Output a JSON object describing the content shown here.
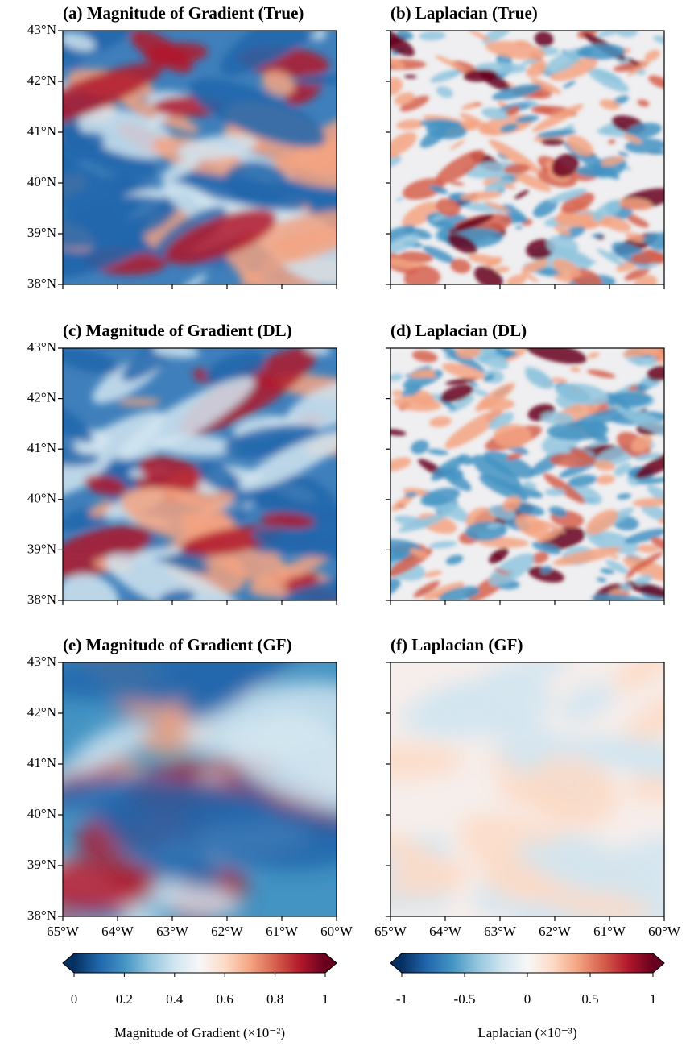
{
  "chart_data": [
    {
      "type": "heatmap",
      "title": "(a) Magnitude of Gradient (True)",
      "field": "gradient",
      "detail": "fine",
      "xlim": [
        -65,
        -60
      ],
      "xticks": [
        -65,
        -64,
        -63,
        -62,
        -61,
        -60
      ],
      "ylim": [
        38,
        43
      ],
      "yticks": [
        {
          "value": 38,
          "label": "38°N"
        },
        {
          "value": 39,
          "label": "39°N"
        },
        {
          "value": 40,
          "label": "40°N"
        },
        {
          "value": 41,
          "label": "41°N"
        },
        {
          "value": 42,
          "label": "42°N"
        },
        {
          "value": 43,
          "label": "43°N"
        }
      ]
    },
    {
      "type": "heatmap",
      "title": "(b) Laplacian (True)",
      "field": "laplacian",
      "detail": "fine",
      "xlim": [
        -65,
        -60
      ],
      "xticks": [
        -65,
        -64,
        -63,
        -62,
        -61,
        -60
      ],
      "ylim": [
        38,
        43
      ],
      "yticks": [
        38,
        39,
        40,
        41,
        42,
        43
      ]
    },
    {
      "type": "heatmap",
      "title": "(c) Magnitude of Gradient (DL)",
      "field": "gradient",
      "detail": "fine",
      "xlim": [
        -65,
        -60
      ],
      "xticks": [
        -65,
        -64,
        -63,
        -62,
        -61,
        -60
      ],
      "ylim": [
        38,
        43
      ],
      "yticks": [
        {
          "value": 38,
          "label": "38°N"
        },
        {
          "value": 39,
          "label": "39°N"
        },
        {
          "value": 40,
          "label": "40°N"
        },
        {
          "value": 41,
          "label": "41°N"
        },
        {
          "value": 42,
          "label": "42°N"
        },
        {
          "value": 43,
          "label": "43°N"
        }
      ]
    },
    {
      "type": "heatmap",
      "title": "(d) Laplacian (DL)",
      "field": "laplacian",
      "detail": "fine",
      "xlim": [
        -65,
        -60
      ],
      "xticks": [
        -65,
        -64,
        -63,
        -62,
        -61,
        -60
      ],
      "ylim": [
        38,
        43
      ],
      "yticks": [
        38,
        39,
        40,
        41,
        42,
        43
      ]
    },
    {
      "type": "heatmap",
      "title": "(e) Magnitude of Gradient (GF)",
      "field": "gradient",
      "detail": "smooth",
      "xlim": [
        -65,
        -60
      ],
      "xticks": [
        {
          "value": -65,
          "label": "65°W"
        },
        {
          "value": -64,
          "label": "64°W"
        },
        {
          "value": -63,
          "label": "63°W"
        },
        {
          "value": -62,
          "label": "62°W"
        },
        {
          "value": -61,
          "label": "61°W"
        },
        {
          "value": -60,
          "label": "60°W"
        }
      ],
      "ylim": [
        38,
        43
      ],
      "yticks": [
        {
          "value": 38,
          "label": "38°N"
        },
        {
          "value": 39,
          "label": "39°N"
        },
        {
          "value": 40,
          "label": "40°N"
        },
        {
          "value": 41,
          "label": "41°N"
        },
        {
          "value": 42,
          "label": "42°N"
        },
        {
          "value": 43,
          "label": "43°N"
        }
      ]
    },
    {
      "type": "heatmap",
      "title": "(f) Laplacian (GF)",
      "field": "laplacian",
      "detail": "smooth",
      "xlim": [
        -65,
        -60
      ],
      "xticks": [
        {
          "value": -65,
          "label": "65°W"
        },
        {
          "value": -64,
          "label": "64°W"
        },
        {
          "value": -63,
          "label": "63°W"
        },
        {
          "value": -62,
          "label": "62°W"
        },
        {
          "value": -61,
          "label": "61°W"
        },
        {
          "value": -60,
          "label": "60°W"
        }
      ],
      "ylim": [
        38,
        43
      ],
      "yticks": [
        38,
        39,
        40,
        41,
        42,
        43
      ]
    },
    {
      "type": "colorbar",
      "label": "Magnitude of Gradient (×10⁻²)",
      "xlim": [
        0,
        1
      ],
      "xticks": [
        0,
        0.2,
        0.4,
        0.6,
        0.8,
        1
      ],
      "colors": [
        "#053061",
        "#2166ac",
        "#4393c3",
        "#92c5de",
        "#d1e5f0",
        "#f7f7f7",
        "#fddbc7",
        "#f4a582",
        "#d6604d",
        "#b2182b",
        "#67001f"
      ]
    },
    {
      "type": "colorbar",
      "label": "Laplacian (×10⁻³)",
      "xlim": [
        -1,
        1
      ],
      "xticks": [
        -1,
        -0.5,
        0,
        0.5,
        1
      ],
      "colors": [
        "#053061",
        "#2166ac",
        "#4393c3",
        "#92c5de",
        "#d1e5f0",
        "#f7f7f7",
        "#fddbc7",
        "#f4a582",
        "#d6604d",
        "#b2182b",
        "#67001f"
      ]
    }
  ]
}
